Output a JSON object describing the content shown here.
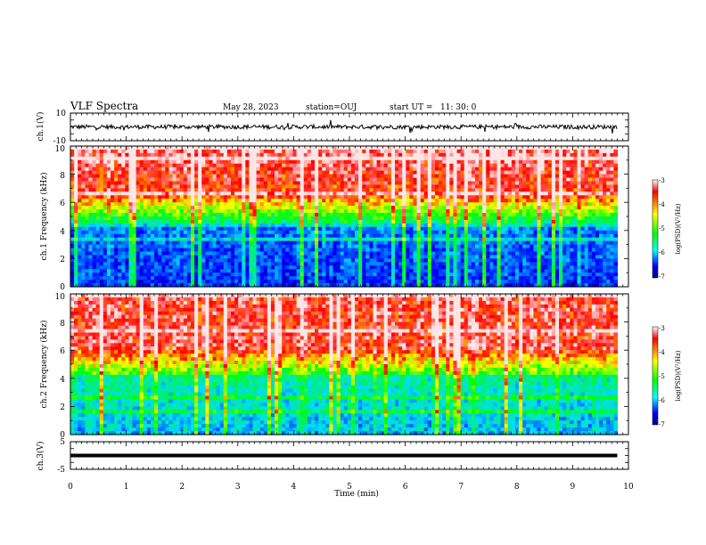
{
  "header": {
    "title": "VLF Spectra",
    "date": "May 28, 2023",
    "station": "station=OUJ",
    "start_ut": "start UT =   11: 30: 0"
  },
  "colorbar": {
    "label": "log(PSD)(V²/Hz)",
    "ticks": [
      "-3",
      "-4",
      "-5",
      "-6",
      "-7"
    ]
  },
  "chart_data": [
    {
      "type": "line",
      "name": "ch1-waveform",
      "ylabel": "ch.1(V)",
      "ylim": [
        -10,
        10
      ],
      "ytick_labels": [
        "10",
        "-10"
      ],
      "x_range": [
        0,
        9.8
      ],
      "trace_level_v": 0,
      "trace_noise_v": 1.5,
      "trace_color": "#000000"
    },
    {
      "type": "heatmap",
      "name": "ch1-spectrogram",
      "ylabel": "ch.1 Frequency (kHz)",
      "ylim": [
        0,
        10
      ],
      "ytick_labels": [
        "0",
        "2",
        "4",
        "6",
        "8",
        "10"
      ],
      "x_range": [
        0,
        9.8
      ],
      "color_scale": [
        "#000080",
        "#0000ff",
        "#00ffff",
        "#00ff00",
        "#ffff00",
        "#ff0000",
        "#ffffff"
      ],
      "log_psd_range": [
        -7,
        -3
      ]
    },
    {
      "type": "heatmap",
      "name": "ch2-spectrogram",
      "ylabel": "ch.2 Frequency (kHz)",
      "ylim": [
        0,
        10
      ],
      "ytick_labels": [
        "0",
        "2",
        "4",
        "6",
        "8",
        "10"
      ],
      "x_range": [
        0,
        9.8
      ],
      "color_scale": [
        "#000080",
        "#0000ff",
        "#00ffff",
        "#00ff00",
        "#ffff00",
        "#ff0000",
        "#ffffff"
      ],
      "log_psd_range": [
        -7,
        -3
      ]
    },
    {
      "type": "line",
      "name": "ch3-waveform",
      "ylabel": "ch.3(V)",
      "ylim": [
        -5,
        5
      ],
      "ytick_labels": [
        "5",
        "-5"
      ],
      "x_range": [
        0,
        9.8
      ],
      "trace_level_v": 0,
      "trace_color": "#000000"
    }
  ],
  "xaxis": {
    "label": "Time (min)",
    "range": [
      0,
      10
    ],
    "ticks": [
      "0",
      "1",
      "2",
      "3",
      "4",
      "5",
      "6",
      "7",
      "8",
      "9",
      "10"
    ]
  }
}
